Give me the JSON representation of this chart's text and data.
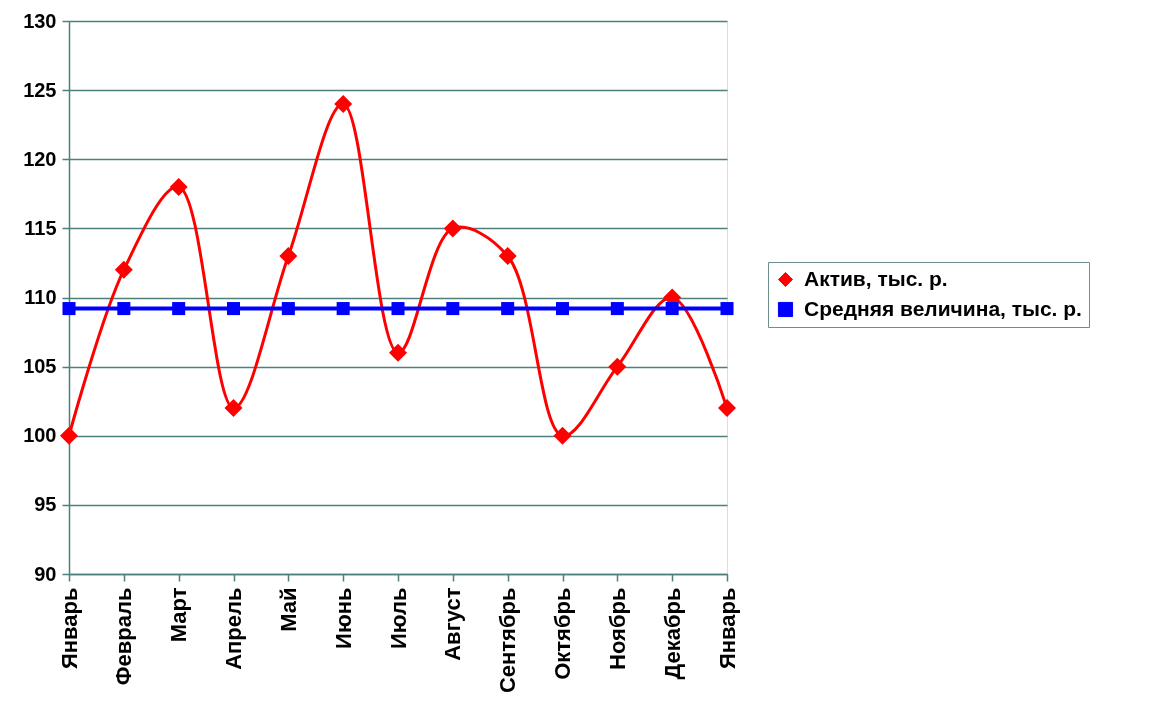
{
  "chart_data": {
    "type": "line",
    "categories": [
      "Январь",
      "Февраль",
      "Март",
      "Апрель",
      "Май",
      "Июнь",
      "Июль",
      "Август",
      "Сентябрь",
      "Октябрь",
      "Ноябрь",
      "Декабрь",
      "Январь"
    ],
    "series": [
      {
        "name": "Актив, тыс. р.",
        "color": "#ff0000",
        "marker": "diamond",
        "values": [
          100,
          112,
          118,
          102,
          113,
          124,
          106,
          115,
          113,
          100,
          105,
          110,
          102
        ]
      },
      {
        "name": "Средняя величина, тыс. р.",
        "color": "#0000ff",
        "marker": "square",
        "values": [
          109.2,
          109.2,
          109.2,
          109.2,
          109.2,
          109.2,
          109.2,
          109.2,
          109.2,
          109.2,
          109.2,
          109.2,
          109.2
        ]
      }
    ],
    "ylim": [
      90,
      130
    ],
    "yticks": [
      90,
      95,
      100,
      105,
      110,
      115,
      120,
      125,
      130
    ],
    "grid": "y",
    "legend": "right"
  }
}
